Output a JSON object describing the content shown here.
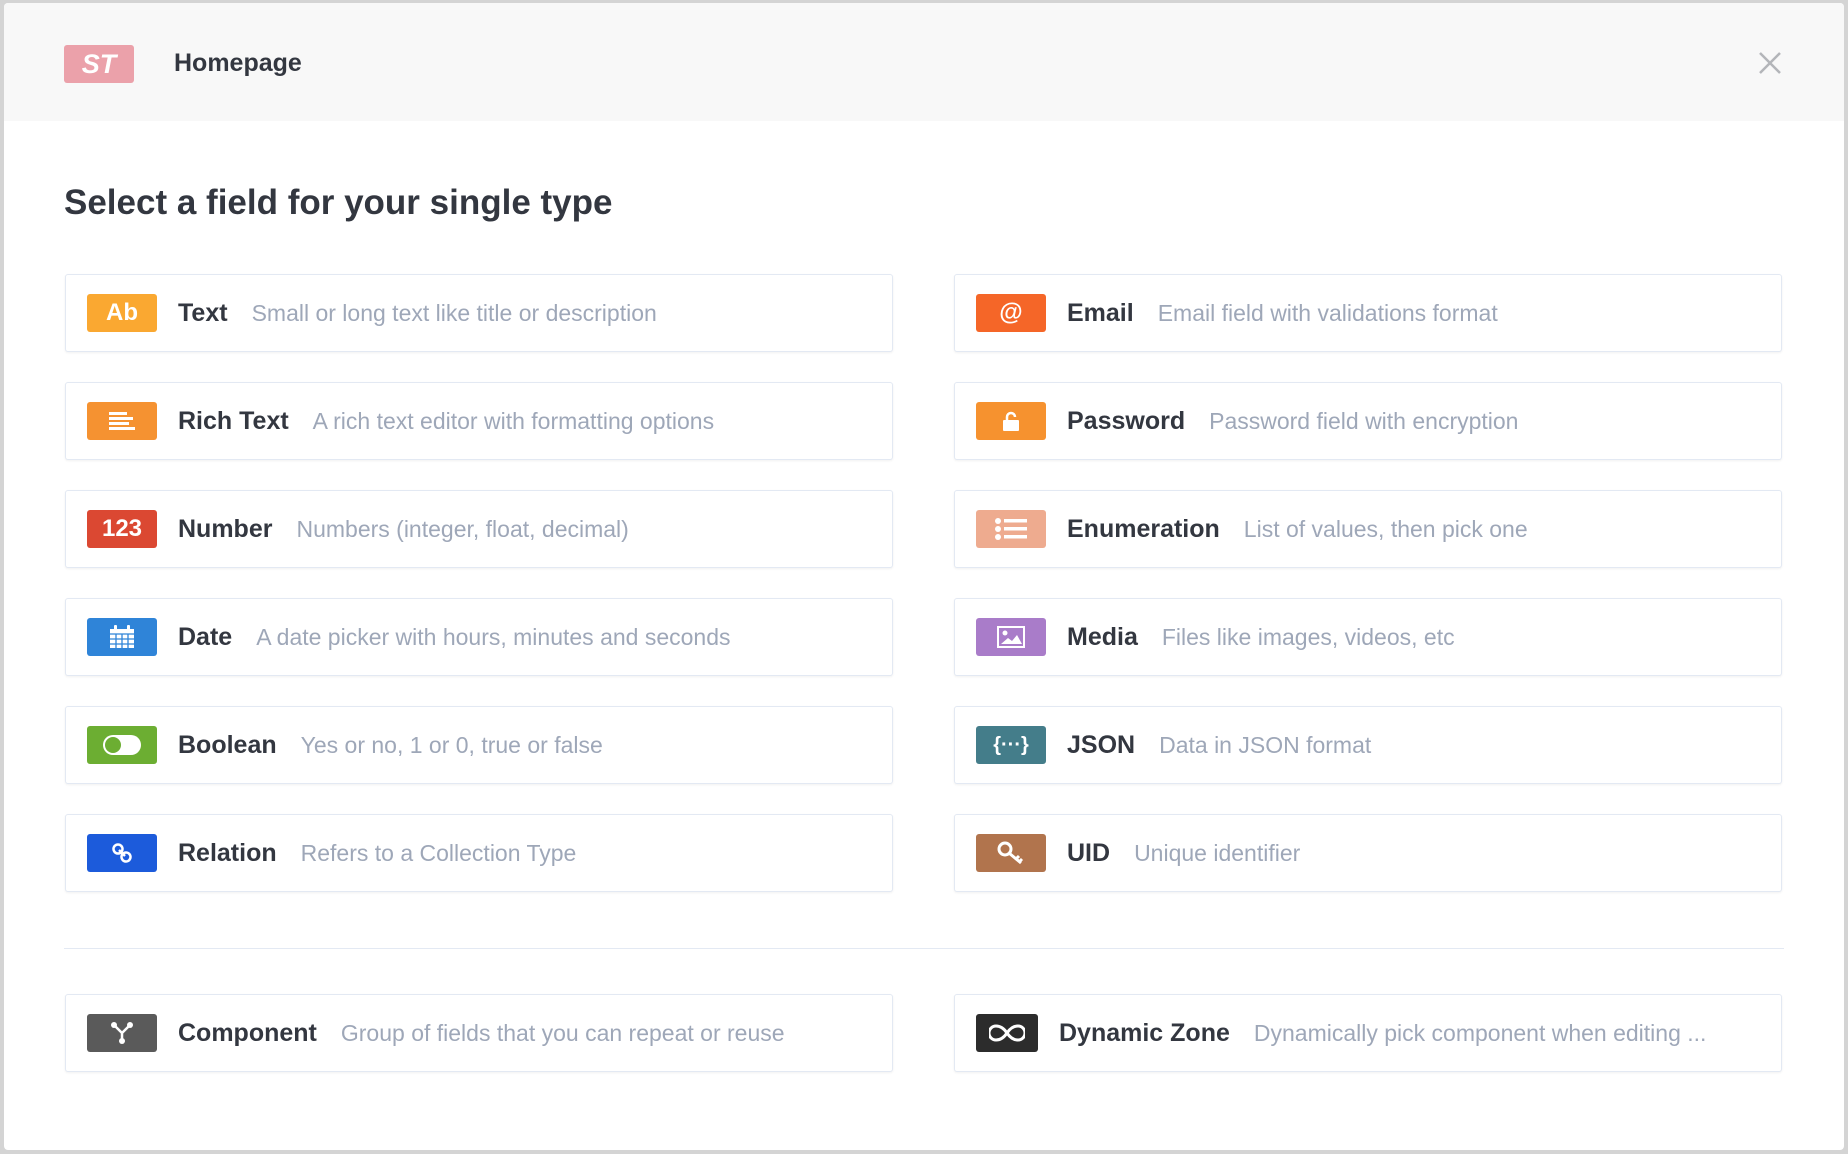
{
  "header": {
    "logo": "ST",
    "title": "Homepage",
    "close": "close"
  },
  "heading": "Select a field for your single type",
  "fields": [
    {
      "label": "Text",
      "desc": "Small or long text like title or description",
      "icon": "text-icon",
      "glyph": "Ab",
      "color": "#faa831"
    },
    {
      "label": "Email",
      "desc": "Email field with validations format",
      "icon": "at-icon",
      "glyph": "@",
      "color": "#f56628"
    },
    {
      "label": "Rich Text",
      "desc": "A rich text editor with formatting options",
      "icon": "align-left-icon",
      "glyph": "",
      "color": "#f59231"
    },
    {
      "label": "Password",
      "desc": "Password field with encryption",
      "icon": "lock-icon",
      "glyph": "",
      "color": "#f6922f"
    },
    {
      "label": "Number",
      "desc": "Numbers (integer, float, decimal)",
      "icon": "number-icon",
      "glyph": "123",
      "color": "#db4832"
    },
    {
      "label": "Enumeration",
      "desc": "List of values, then pick one",
      "icon": "list-icon",
      "glyph": "",
      "color": "#eeab8f"
    },
    {
      "label": "Date",
      "desc": "A date picker with hours, minutes and seconds",
      "icon": "calendar-icon",
      "glyph": "",
      "color": "#2f84d8"
    },
    {
      "label": "Media",
      "desc": "Files like images, videos, etc",
      "icon": "image-icon",
      "glyph": "",
      "color": "#a97cc9"
    },
    {
      "label": "Boolean",
      "desc": "Yes or no, 1 or 0, true or false",
      "icon": "toggle-icon",
      "glyph": "",
      "color": "#6cae32"
    },
    {
      "label": "JSON",
      "desc": "Data in JSON format",
      "icon": "json-icon",
      "glyph": "{···}",
      "color": "#447d8a"
    },
    {
      "label": "Relation",
      "desc": "Refers to a Collection Type",
      "icon": "link-icon",
      "glyph": "",
      "color": "#1c5bdb"
    },
    {
      "label": "UID",
      "desc": "Unique identifier",
      "icon": "key-icon",
      "glyph": "",
      "color": "#b1744d"
    }
  ],
  "extra": [
    {
      "label": "Component",
      "desc": "Group of fields that you can repeat or reuse",
      "icon": "component-icon",
      "color": "#5a5a5a"
    },
    {
      "label": "Dynamic Zone",
      "desc": "Dynamically pick component when editing ...",
      "icon": "infinity-icon",
      "color": "#2c2c2c"
    }
  ]
}
